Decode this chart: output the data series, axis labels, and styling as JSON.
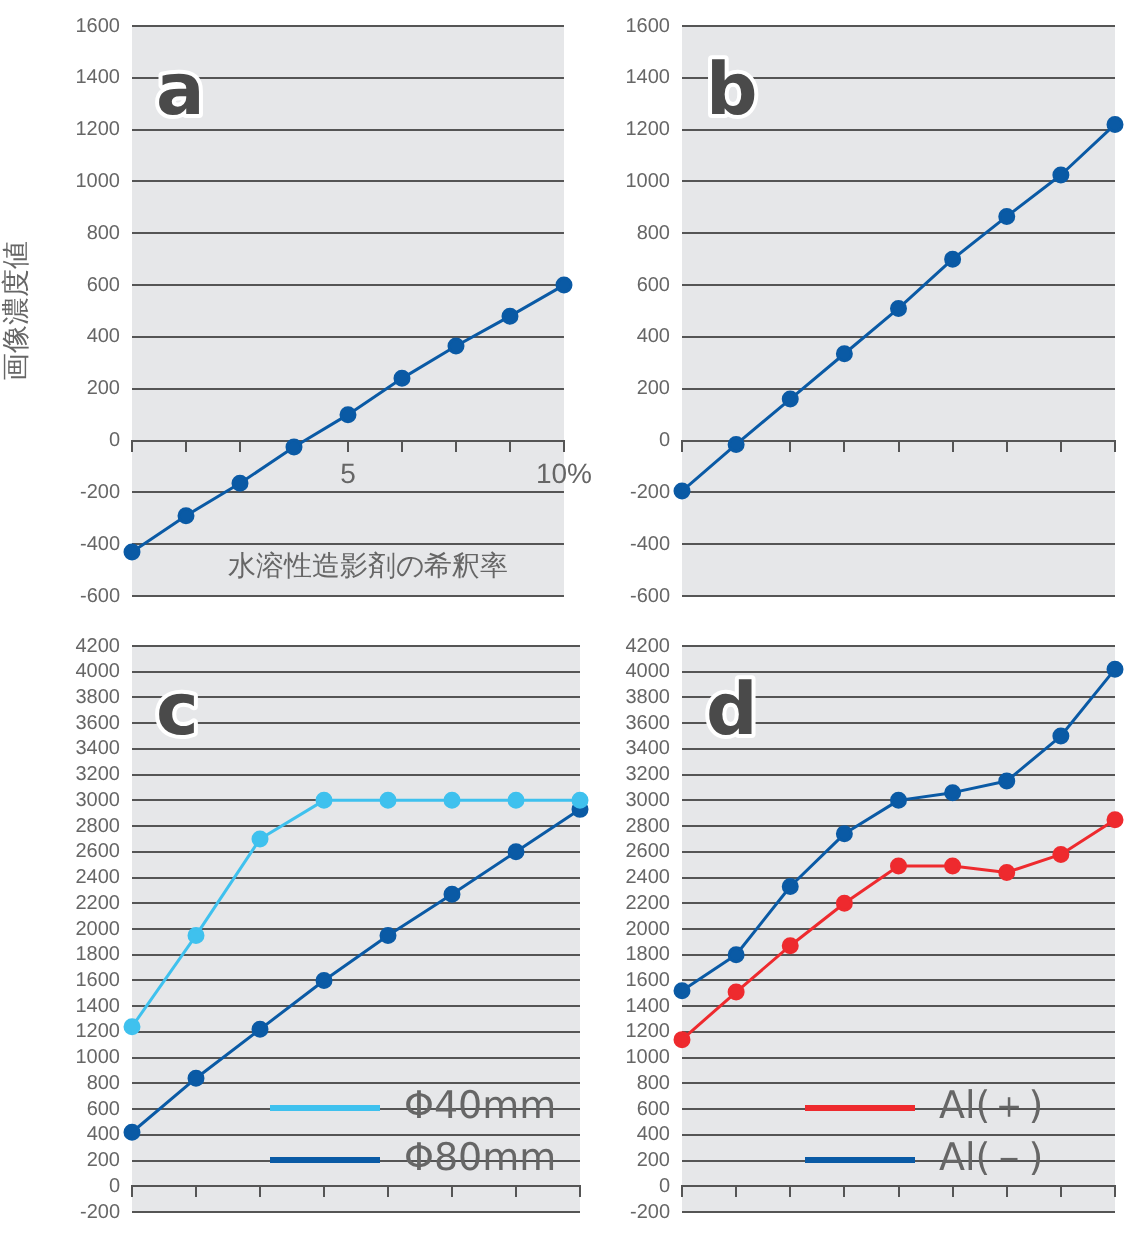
{
  "chart_data": [
    {
      "type": "line",
      "title": "a",
      "xlabel": "水溶性造影剤の希釈率",
      "ylabel": "画像濃度値",
      "x": [
        0,
        1.25,
        2.5,
        3.75,
        5,
        6.25,
        7.5,
        8.75,
        10
      ],
      "series": [
        {
          "color": "#0a5aa5",
          "values": [
            -430,
            -290,
            -165,
            -25,
            100,
            240,
            365,
            480,
            600
          ]
        }
      ],
      "xlim": [
        0,
        10
      ],
      "xticks": [
        {
          "value": 0,
          "label": null
        },
        {
          "value": 1.25,
          "label": null
        },
        {
          "value": 2.5,
          "label": null
        },
        {
          "value": 3.75,
          "label": null
        },
        5,
        {
          "value": 6.25,
          "label": null
        },
        {
          "value": 7.5,
          "label": null
        },
        {
          "value": 8.75,
          "label": null
        },
        {
          "value": 10,
          "label": "10%"
        }
      ],
      "ylim": [
        -600,
        1600
      ],
      "yticks": [
        -600,
        -400,
        -200,
        0,
        200,
        400,
        600,
        800,
        1000,
        1200,
        1400,
        1600
      ],
      "grid": "y",
      "marker": "circle",
      "legend": false
    },
    {
      "type": "line",
      "title": "b",
      "categories": [
        null,
        null,
        null,
        null,
        null,
        null,
        null,
        null,
        null
      ],
      "series": [
        {
          "color": "#0a5aa5",
          "values": [
            -195,
            -15,
            160,
            335,
            510,
            700,
            865,
            1025,
            1220
          ]
        }
      ],
      "ylim": [
        -600,
        1600
      ],
      "yticks": [
        -600,
        -400,
        -200,
        0,
        200,
        400,
        600,
        800,
        1000,
        1200,
        1400,
        1600
      ],
      "grid": "y",
      "marker": "circle",
      "legend": false
    },
    {
      "type": "line",
      "title": "c",
      "categories": [
        null,
        null,
        null,
        null,
        null,
        null,
        null,
        null
      ],
      "series": [
        {
          "name": "Φ40mm",
          "color": "#3fc1ee",
          "values": [
            1240,
            1950,
            2700,
            3000,
            3000,
            3000,
            3000,
            3000
          ]
        },
        {
          "name": "Φ80mm",
          "color": "#0a5aa5",
          "values": [
            420,
            840,
            1220,
            1600,
            1950,
            2270,
            2600,
            2930
          ]
        }
      ],
      "ylim": [
        -200,
        4200
      ],
      "yticks": [
        -200,
        0,
        200,
        400,
        600,
        800,
        1000,
        1200,
        1400,
        1600,
        1800,
        2000,
        2200,
        2400,
        2600,
        2800,
        3000,
        3200,
        3400,
        3600,
        3800,
        4000,
        4200
      ],
      "grid": "y",
      "marker": "circle",
      "legend": "bottom right"
    },
    {
      "type": "line",
      "title": "d",
      "categories": [
        null,
        null,
        null,
        null,
        null,
        null,
        null,
        null,
        null
      ],
      "series": [
        {
          "name": "Al(＋)",
          "color": "#ee2a2e",
          "values": [
            1140,
            1510,
            1870,
            2200,
            2490,
            2490,
            2440,
            2580,
            2850
          ]
        },
        {
          "name": "Al(－)",
          "color": "#0a5aa5",
          "values": [
            1520,
            1800,
            2330,
            2740,
            3000,
            3060,
            3150,
            3500,
            4020
          ]
        }
      ],
      "ylim": [
        -200,
        4200
      ],
      "yticks": [
        -200,
        0,
        200,
        400,
        600,
        800,
        1000,
        1200,
        1400,
        1600,
        1800,
        2000,
        2200,
        2400,
        2600,
        2800,
        3000,
        3200,
        3400,
        3600,
        3800,
        4000,
        4200
      ],
      "grid": "y",
      "marker": "circle",
      "legend": "bottom right"
    }
  ]
}
